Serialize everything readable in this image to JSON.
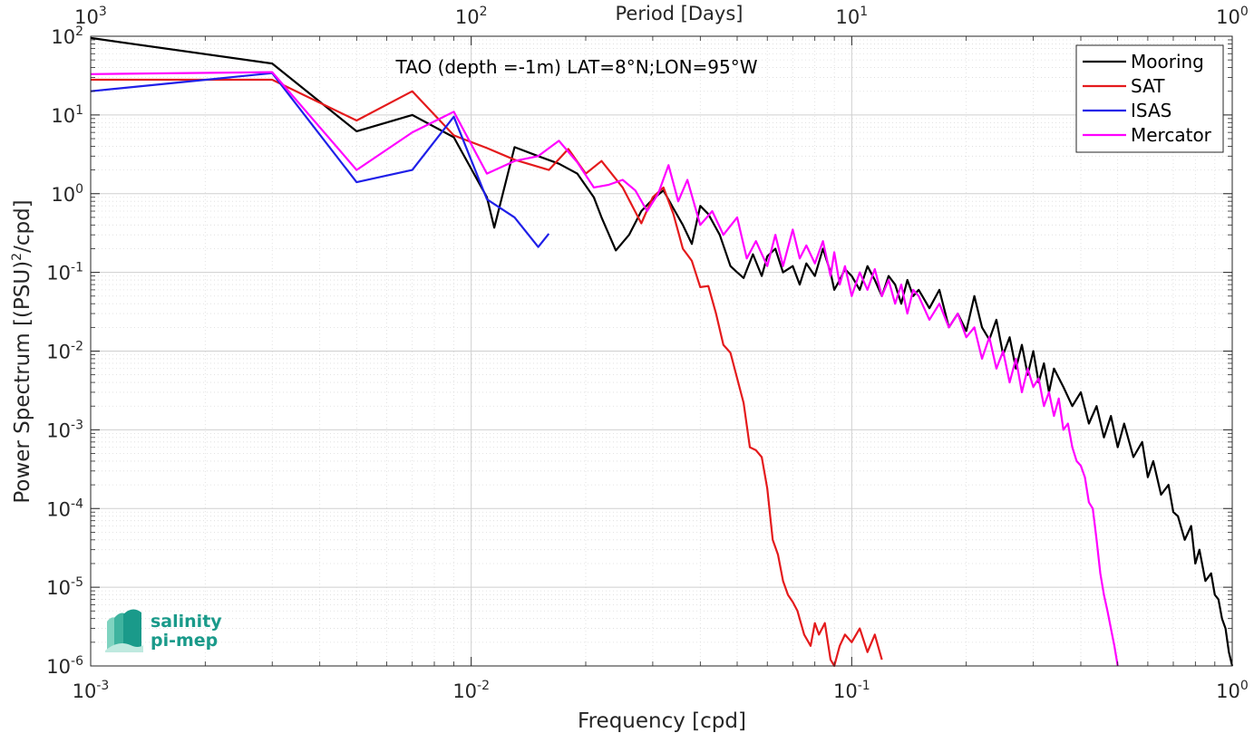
{
  "chart_data": {
    "type": "line",
    "title": "TAO (depth =-1m) LAT=8°N;LON=95°W",
    "xlabel": "Frequency [cpd]",
    "ylabel": "Power Spectrum [(PSU)²/cpd]",
    "top_xlabel": "Period [Days]",
    "x_scale": "log",
    "y_scale": "log",
    "xlim": [
      0.001,
      1
    ],
    "ylim": [
      1e-06,
      100
    ],
    "grid": true,
    "legend_position": "top-right",
    "x_ticks": [
      {
        "value": 0.001,
        "base": "10",
        "exp": "-3"
      },
      {
        "value": 0.01,
        "base": "10",
        "exp": "-2"
      },
      {
        "value": 0.1,
        "base": "10",
        "exp": "-1"
      },
      {
        "value": 1,
        "base": "10",
        "exp": "0"
      }
    ],
    "top_ticks": [
      {
        "value": 0.001,
        "base": "10",
        "exp": "3"
      },
      {
        "value": 0.01,
        "base": "10",
        "exp": "2"
      },
      {
        "value": 0.1,
        "base": "10",
        "exp": "1"
      },
      {
        "value": 1,
        "base": "10",
        "exp": "0"
      }
    ],
    "y_ticks": [
      {
        "value": 1e-06,
        "base": "10",
        "exp": "-6"
      },
      {
        "value": 1e-05,
        "base": "10",
        "exp": "-5"
      },
      {
        "value": 0.0001,
        "base": "10",
        "exp": "-4"
      },
      {
        "value": 0.001,
        "base": "10",
        "exp": "-3"
      },
      {
        "value": 0.01,
        "base": "10",
        "exp": "-2"
      },
      {
        "value": 0.1,
        "base": "10",
        "exp": "-1"
      },
      {
        "value": 1,
        "base": "10",
        "exp": "0"
      },
      {
        "value": 10,
        "base": "10",
        "exp": "1"
      },
      {
        "value": 100,
        "base": "10",
        "exp": "2"
      }
    ],
    "series": [
      {
        "name": "Mooring",
        "color": "#000000",
        "x": [
          0.001,
          0.003,
          0.005,
          0.007,
          0.009,
          0.011,
          0.0115,
          0.013,
          0.015,
          0.017,
          0.019,
          0.021,
          0.022,
          0.024,
          0.026,
          0.028,
          0.03,
          0.032,
          0.034,
          0.036,
          0.038,
          0.04,
          0.042,
          0.045,
          0.048,
          0.05,
          0.052,
          0.055,
          0.058,
          0.06,
          0.063,
          0.066,
          0.07,
          0.073,
          0.076,
          0.08,
          0.084,
          0.088,
          0.09,
          0.093,
          0.096,
          0.1,
          0.105,
          0.11,
          0.115,
          0.12,
          0.125,
          0.13,
          0.135,
          0.14,
          0.145,
          0.15,
          0.16,
          0.17,
          0.18,
          0.19,
          0.2,
          0.21,
          0.22,
          0.23,
          0.24,
          0.25,
          0.26,
          0.27,
          0.28,
          0.29,
          0.3,
          0.31,
          0.32,
          0.33,
          0.34,
          0.36,
          0.38,
          0.4,
          0.42,
          0.44,
          0.46,
          0.48,
          0.5,
          0.52,
          0.55,
          0.58,
          0.6,
          0.62,
          0.65,
          0.68,
          0.7,
          0.72,
          0.75,
          0.78,
          0.8,
          0.82,
          0.85,
          0.88,
          0.9,
          0.92,
          0.94,
          0.96,
          0.98,
          1.0
        ],
        "values": [
          95,
          45,
          6.2,
          10,
          5.2,
          0.9,
          0.37,
          3.9,
          3.0,
          2.4,
          1.8,
          0.9,
          0.5,
          0.19,
          0.3,
          0.6,
          0.85,
          1.1,
          0.65,
          0.4,
          0.23,
          0.7,
          0.55,
          0.3,
          0.12,
          0.1,
          0.085,
          0.17,
          0.09,
          0.16,
          0.2,
          0.1,
          0.12,
          0.07,
          0.13,
          0.09,
          0.2,
          0.1,
          0.06,
          0.08,
          0.11,
          0.09,
          0.06,
          0.12,
          0.08,
          0.05,
          0.09,
          0.07,
          0.04,
          0.08,
          0.05,
          0.06,
          0.035,
          0.06,
          0.02,
          0.03,
          0.018,
          0.05,
          0.02,
          0.014,
          0.025,
          0.009,
          0.015,
          0.006,
          0.012,
          0.005,
          0.01,
          0.004,
          0.007,
          0.003,
          0.006,
          0.0035,
          0.002,
          0.003,
          0.0012,
          0.002,
          0.0008,
          0.0015,
          0.0006,
          0.0012,
          0.00045,
          0.0007,
          0.00025,
          0.0004,
          0.00015,
          0.0002,
          9e-05,
          8e-05,
          4e-05,
          6e-05,
          2e-05,
          3e-05,
          1.2e-05,
          1.5e-05,
          8e-06,
          7e-06,
          4e-06,
          3e-06,
          1.5e-06,
          1e-06
        ]
      },
      {
        "name": "SAT",
        "color": "#e41a1c",
        "x": [
          0.001,
          0.003,
          0.005,
          0.007,
          0.009,
          0.011,
          0.013,
          0.016,
          0.018,
          0.02,
          0.022,
          0.025,
          0.028,
          0.03,
          0.032,
          0.034,
          0.036,
          0.038,
          0.04,
          0.042,
          0.044,
          0.046,
          0.048,
          0.05,
          0.052,
          0.054,
          0.056,
          0.058,
          0.06,
          0.062,
          0.064,
          0.066,
          0.068,
          0.07,
          0.072,
          0.075,
          0.078,
          0.08,
          0.082,
          0.085,
          0.088,
          0.09,
          0.093,
          0.096,
          0.1,
          0.105,
          0.11,
          0.115,
          0.12
        ],
        "values": [
          28,
          28,
          8.5,
          20,
          5.5,
          3.8,
          2.7,
          2.0,
          3.7,
          1.8,
          2.6,
          1.2,
          0.42,
          0.9,
          1.2,
          0.55,
          0.2,
          0.14,
          0.065,
          0.067,
          0.03,
          0.012,
          0.0095,
          0.0045,
          0.0022,
          0.0006,
          0.00055,
          0.00045,
          0.00018,
          4e-05,
          2.6e-05,
          1.2e-05,
          8e-06,
          6.5e-06,
          5e-06,
          2.5e-06,
          1.8e-06,
          3.5e-06,
          2.5e-06,
          3.5e-06,
          1.2e-06,
          1e-06,
          1.8e-06,
          2.5e-06,
          2e-06,
          3e-06,
          1.5e-06,
          2.5e-06,
          1.2e-06
        ]
      },
      {
        "name": "ISAS",
        "color": "#1f1fe8",
        "x": [
          0.001,
          0.003,
          0.005,
          0.007,
          0.009,
          0.011,
          0.013,
          0.015,
          0.016
        ],
        "values": [
          20,
          34,
          1.4,
          2.0,
          9.5,
          0.85,
          0.5,
          0.21,
          0.31
        ]
      },
      {
        "name": "Mercator",
        "color": "#ff00ff",
        "x": [
          0.001,
          0.003,
          0.005,
          0.007,
          0.009,
          0.011,
          0.013,
          0.015,
          0.017,
          0.019,
          0.021,
          0.023,
          0.025,
          0.027,
          0.029,
          0.031,
          0.033,
          0.035,
          0.037,
          0.04,
          0.043,
          0.046,
          0.05,
          0.053,
          0.056,
          0.06,
          0.063,
          0.066,
          0.07,
          0.073,
          0.076,
          0.08,
          0.084,
          0.088,
          0.09,
          0.093,
          0.096,
          0.1,
          0.105,
          0.11,
          0.115,
          0.12,
          0.125,
          0.13,
          0.135,
          0.14,
          0.145,
          0.15,
          0.16,
          0.17,
          0.18,
          0.19,
          0.2,
          0.21,
          0.22,
          0.23,
          0.24,
          0.25,
          0.26,
          0.27,
          0.28,
          0.29,
          0.3,
          0.31,
          0.32,
          0.33,
          0.34,
          0.35,
          0.36,
          0.37,
          0.38,
          0.39,
          0.4,
          0.41,
          0.42,
          0.43,
          0.44,
          0.45,
          0.46,
          0.47,
          0.48,
          0.49,
          0.5
        ],
        "values": [
          33,
          35,
          2.0,
          6.0,
          11,
          1.8,
          2.6,
          3.0,
          4.7,
          2.5,
          1.2,
          1.3,
          1.5,
          1.1,
          0.6,
          1.0,
          2.3,
          0.8,
          1.5,
          0.4,
          0.6,
          0.3,
          0.5,
          0.15,
          0.25,
          0.12,
          0.3,
          0.12,
          0.35,
          0.15,
          0.22,
          0.13,
          0.25,
          0.09,
          0.18,
          0.07,
          0.12,
          0.05,
          0.1,
          0.06,
          0.11,
          0.05,
          0.08,
          0.04,
          0.07,
          0.03,
          0.06,
          0.05,
          0.025,
          0.04,
          0.02,
          0.03,
          0.015,
          0.02,
          0.008,
          0.015,
          0.006,
          0.01,
          0.004,
          0.008,
          0.003,
          0.006,
          0.0035,
          0.0045,
          0.002,
          0.003,
          0.0015,
          0.0025,
          0.001,
          0.0012,
          0.0006,
          0.0004,
          0.00035,
          0.00025,
          0.00012,
          0.0001,
          4e-05,
          1.5e-05,
          8e-06,
          5e-06,
          3e-06,
          1.8e-06,
          1e-06
        ]
      }
    ]
  },
  "logo": {
    "line1": "salinity",
    "line2": "pi-mep",
    "color": "#1a9a8a"
  }
}
